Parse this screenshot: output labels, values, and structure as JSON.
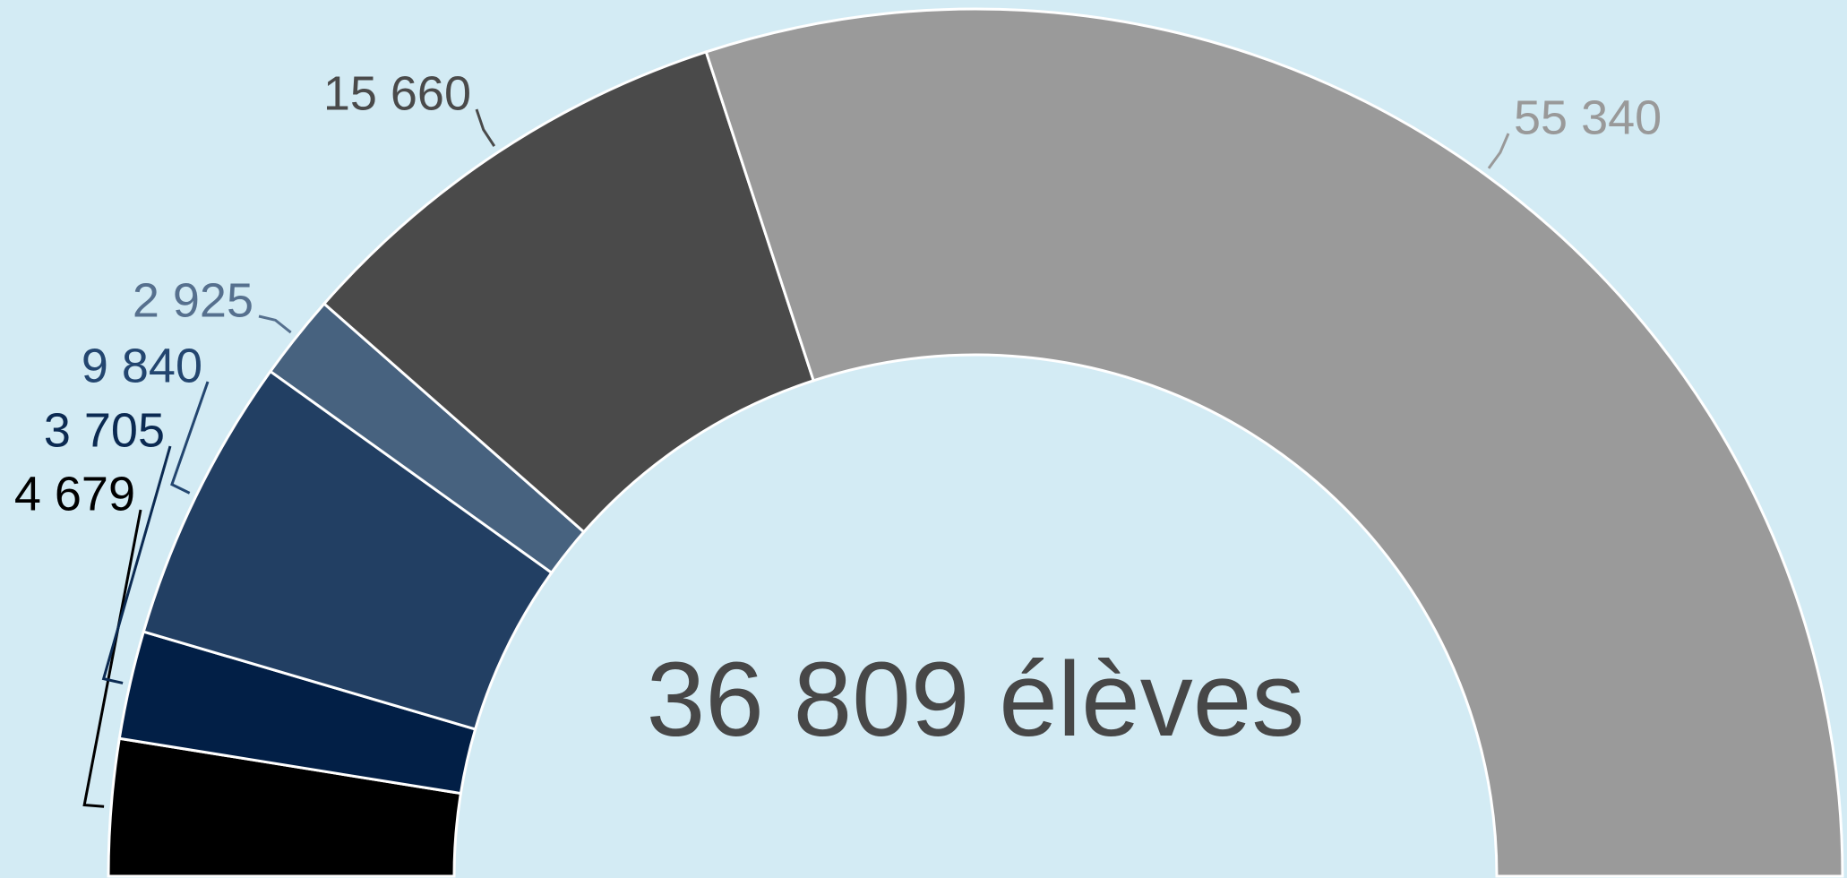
{
  "chart_data": {
    "type": "donut",
    "annotation": "36 809 élèves",
    "values": [
      4679,
      3705,
      9840,
      2925,
      15660,
      55340
    ],
    "value_labels": [
      "4 679",
      "3 705",
      "9 840",
      "2 925",
      "15 660",
      "55 340"
    ],
    "colors": [
      "#000000",
      "#021f46",
      "#223f63",
      "#47627f",
      "#4a4a4a",
      "#9a9a9a"
    ],
    "label_colors": [
      "#000000",
      "#0b2a52",
      "#234670",
      "#56708e",
      "#4a4a4a",
      "#999999"
    ]
  }
}
